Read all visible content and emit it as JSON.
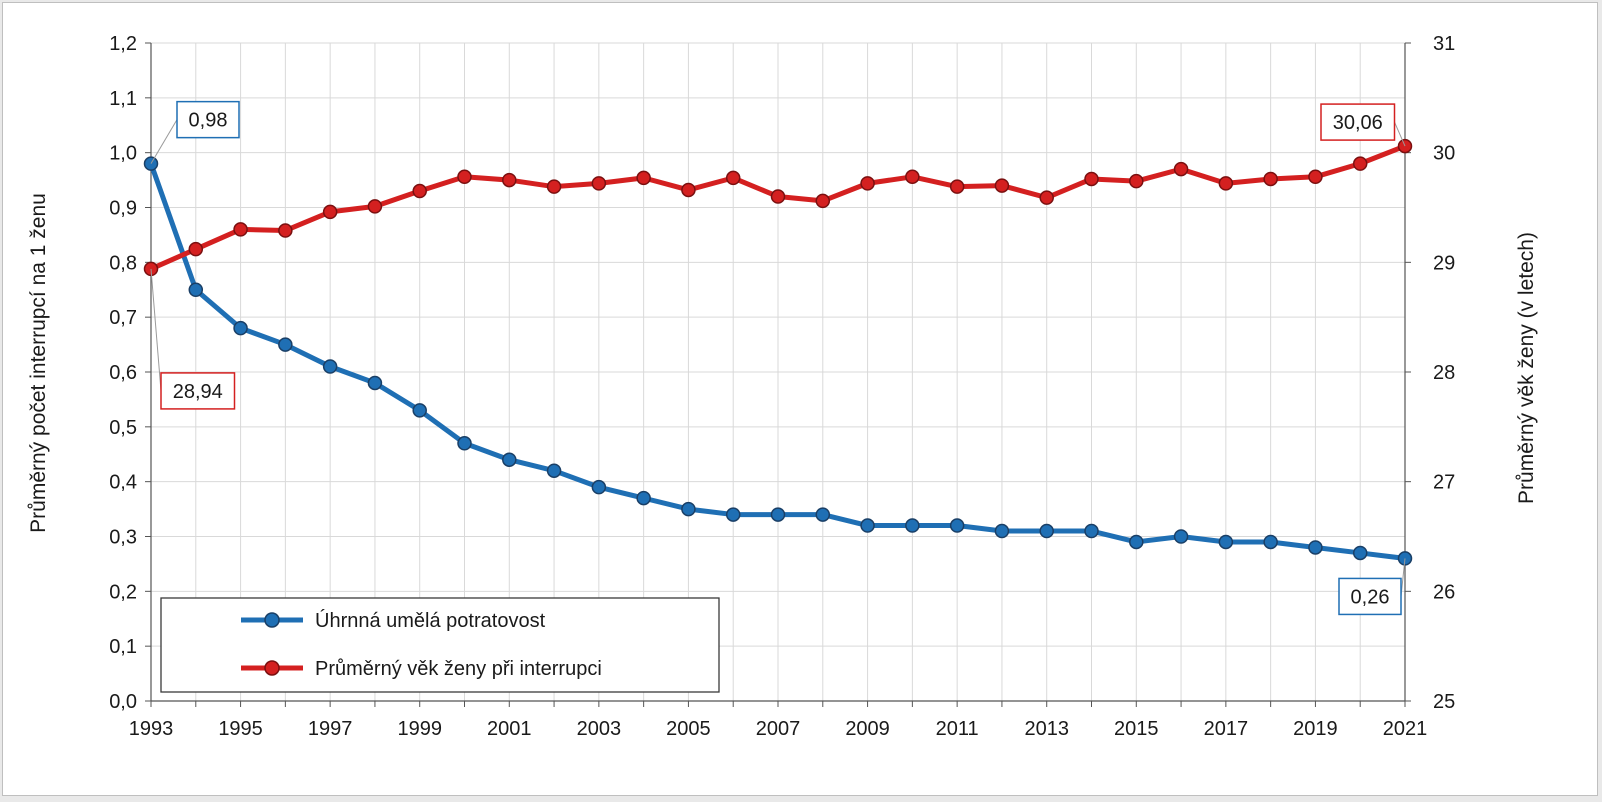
{
  "chart_data": {
    "type": "line",
    "x": [
      1993,
      1994,
      1995,
      1996,
      1997,
      1998,
      1999,
      2000,
      2001,
      2002,
      2003,
      2004,
      2005,
      2006,
      2007,
      2008,
      2009,
      2010,
      2011,
      2012,
      2013,
      2014,
      2015,
      2016,
      2017,
      2018,
      2019,
      2020,
      2021
    ],
    "x_tick_labels": [
      "1993",
      "1995",
      "1997",
      "1999",
      "2001",
      "2003",
      "2005",
      "2007",
      "2009",
      "2011",
      "2013",
      "2015",
      "2017",
      "2019",
      "2021"
    ],
    "ylabel_left": "Průměrný počet interrupcí na 1 ženu",
    "ylabel_right": "Průměrný věk ženy (v letech)",
    "ylim_left": [
      0,
      1.2
    ],
    "ylim_right": [
      25,
      31
    ],
    "yticks_left": [
      "0,0",
      "0,1",
      "0,2",
      "0,3",
      "0,4",
      "0,5",
      "0,6",
      "0,7",
      "0,8",
      "0,9",
      "1,0",
      "1,1",
      "1,2"
    ],
    "yticks_right": [
      "25",
      "26",
      "27",
      "28",
      "29",
      "30",
      "31"
    ],
    "grid": true,
    "legend_position": "bottom-left",
    "series": [
      {
        "name": "Úhrnná umělá potratovost",
        "axis": "left",
        "color": "#1f6fb4",
        "values": [
          0.98,
          0.75,
          0.68,
          0.65,
          0.61,
          0.58,
          0.53,
          0.47,
          0.44,
          0.42,
          0.39,
          0.37,
          0.35,
          0.34,
          0.34,
          0.34,
          0.32,
          0.32,
          0.32,
          0.31,
          0.31,
          0.31,
          0.29,
          0.3,
          0.29,
          0.29,
          0.28,
          0.27,
          0.26
        ]
      },
      {
        "name": "Průměrný věk ženy při interrupci",
        "axis": "right",
        "color": "#d42020",
        "values": [
          28.94,
          29.12,
          29.3,
          29.29,
          29.46,
          29.51,
          29.65,
          29.78,
          29.75,
          29.69,
          29.72,
          29.77,
          29.66,
          29.77,
          29.6,
          29.56,
          29.72,
          29.78,
          29.69,
          29.7,
          29.59,
          29.76,
          29.74,
          29.85,
          29.72,
          29.76,
          29.78,
          29.9,
          30.06
        ]
      }
    ],
    "annotations": [
      {
        "text": "0,98",
        "series": 0,
        "index": 0
      },
      {
        "text": "28,94",
        "series": 1,
        "index": 0
      },
      {
        "text": "30,06",
        "series": 1,
        "index": 28
      },
      {
        "text": "0,26",
        "series": 0,
        "index": 28
      }
    ]
  }
}
